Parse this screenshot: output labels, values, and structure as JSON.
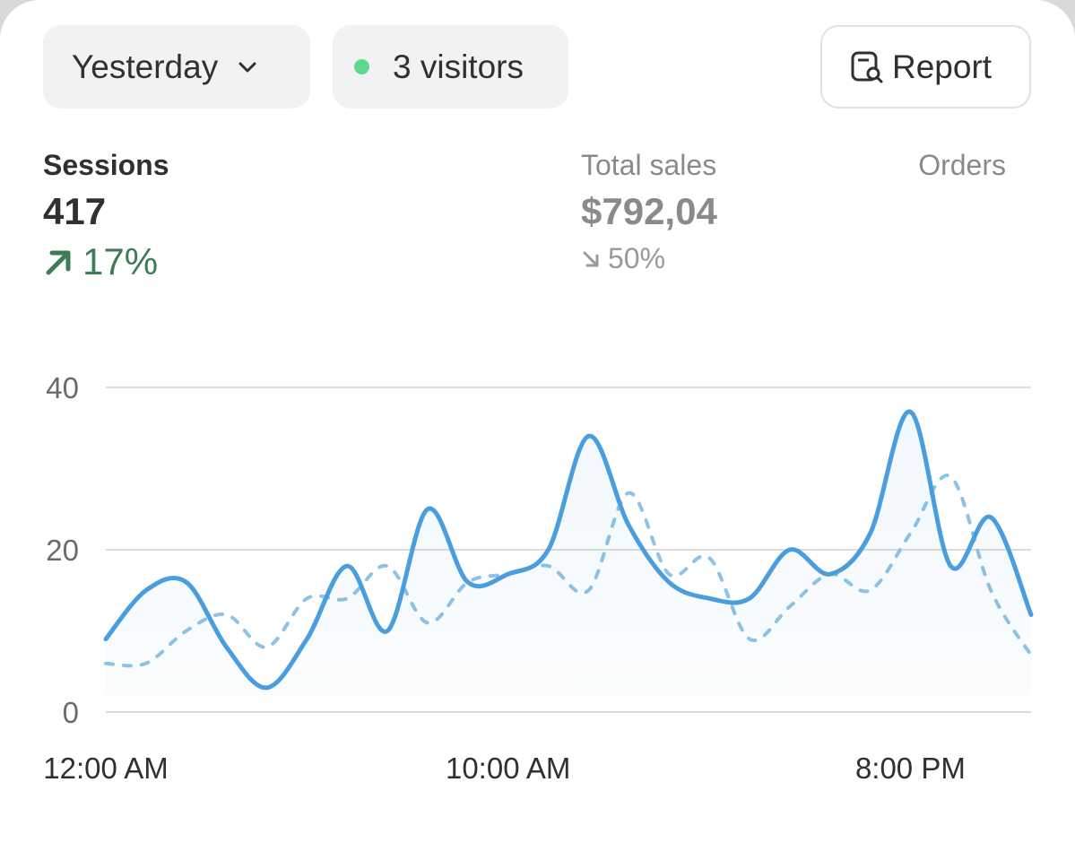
{
  "toolbar": {
    "period": "Yesterday",
    "visitors": "3 visitors",
    "report": "Report"
  },
  "metrics": [
    {
      "label": "Sessions",
      "value": "417",
      "change": "17%"
    },
    {
      "label": "Total sales",
      "value": "$792,04",
      "change": "50%"
    },
    {
      "label": "Orders"
    }
  ],
  "chart_data": {
    "type": "line",
    "categories": [
      "12:00 AM",
      null,
      null,
      null,
      null,
      null,
      null,
      null,
      null,
      null,
      "10:00 AM",
      null,
      null,
      null,
      null,
      null,
      null,
      null,
      null,
      null,
      "8:00 PM",
      null,
      null,
      null
    ],
    "series": [
      {
        "color": "#4a9ede",
        "style": "solid",
        "values": [
          9,
          15,
          16,
          8,
          3,
          9,
          18,
          10,
          25,
          16,
          17,
          20,
          34,
          23,
          16,
          14,
          14,
          20,
          17,
          22,
          37,
          18,
          24,
          12
        ]
      },
      {
        "color": "#8dc3e6",
        "style": "dashed",
        "values": [
          6,
          6,
          10,
          12,
          8,
          14,
          14,
          18,
          11,
          16,
          17,
          18,
          15,
          27,
          17,
          19,
          9,
          13,
          17,
          15,
          22,
          29,
          15,
          7
        ]
      }
    ],
    "ylim": [
      0,
      40
    ],
    "yticks": [
      0,
      20,
      40
    ],
    "grid": true
  }
}
